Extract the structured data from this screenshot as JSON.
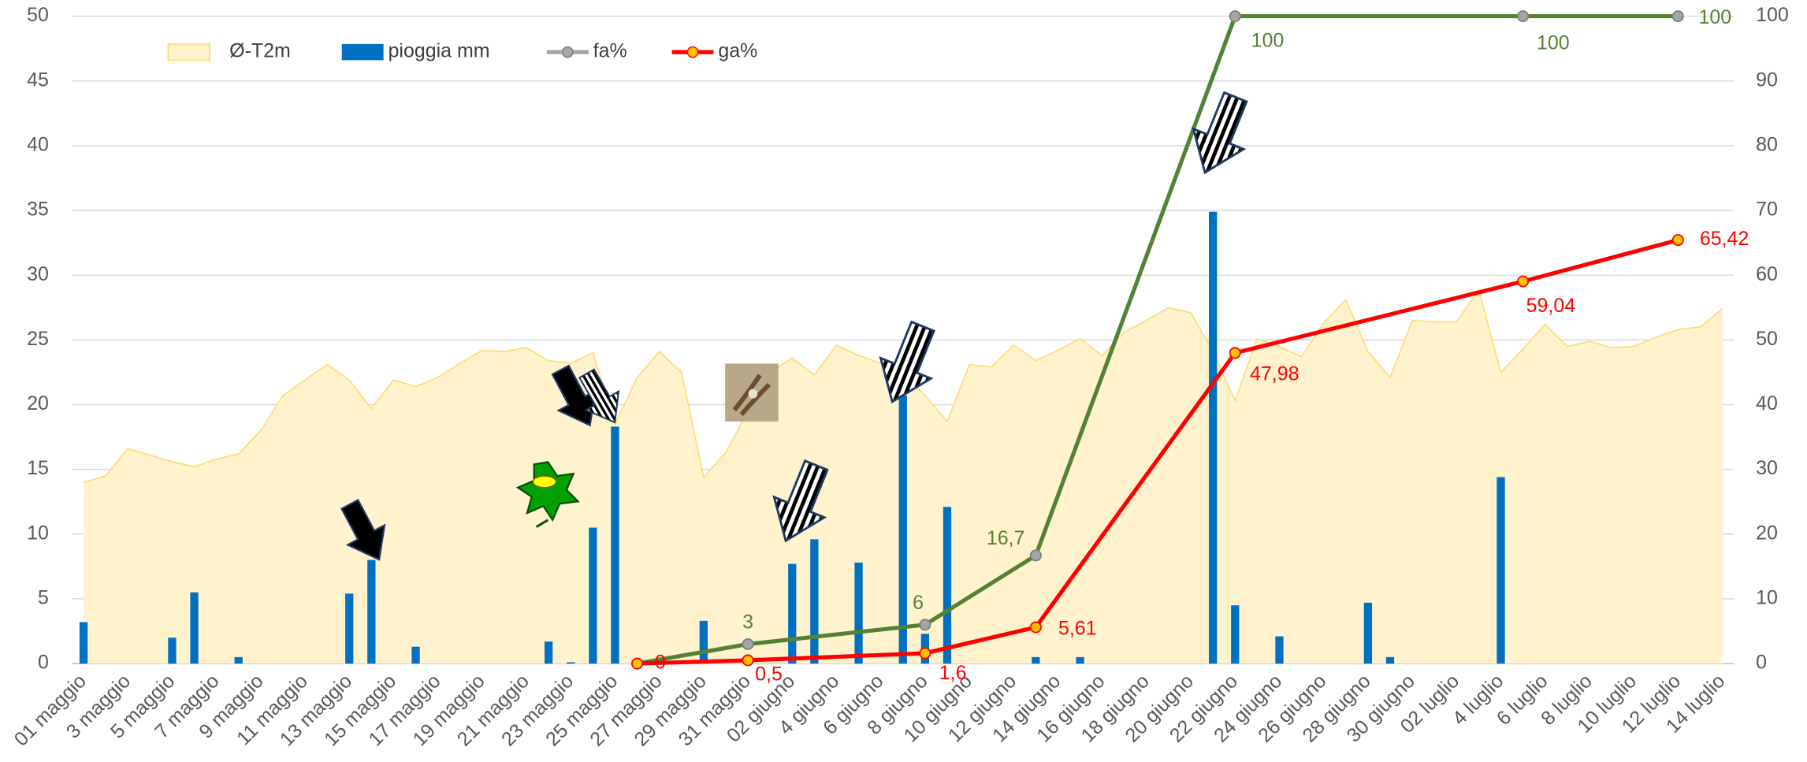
{
  "chart_data": {
    "type": "combo",
    "categories": [
      "01 maggio",
      null,
      "3 maggio",
      null,
      "5 maggio",
      null,
      "7 maggio",
      null,
      "9 maggio",
      null,
      "11 maggio",
      null,
      "13 maggio",
      null,
      "15 maggio",
      null,
      "17 maggio",
      null,
      "19 maggio",
      null,
      "21 maggio",
      null,
      "23 maggio",
      null,
      "25 maggio",
      null,
      "27 maggio",
      null,
      "29 maggio",
      null,
      "31 maggio",
      null,
      "02 giugno",
      null,
      "4 giugno",
      null,
      "6 giugno",
      null,
      "8 giugno",
      null,
      "10 giugno",
      null,
      "12 giugno",
      null,
      "14 giugno",
      null,
      "16 giugno",
      null,
      "18 giugno",
      null,
      "20 giugno",
      null,
      "22 giugno",
      null,
      "24 giugno",
      null,
      "26 giugno",
      null,
      "28 giugno",
      null,
      "30 giugno",
      null,
      "02 luglio",
      null,
      "4 luglio",
      null,
      "6 luglio",
      null,
      "8 luglio",
      null,
      "10 luglio",
      null,
      "12 luglio",
      null,
      "14 luglio"
    ],
    "series": [
      {
        "name": "Ø-T2m",
        "type": "area",
        "color": "#fff2cc",
        "values": [
          14,
          14.5,
          16.6,
          16.1,
          15.6,
          15.2,
          15.8,
          16.2,
          18,
          20.7,
          21.9,
          23.1,
          21.9,
          19.7,
          21.9,
          21.4,
          22.1,
          23.2,
          24.2,
          24.1,
          24.4,
          23.4,
          23.2,
          24,
          18.5,
          22.1,
          24.1,
          22.5,
          14.4,
          16.3,
          19.5,
          22.5,
          23.6,
          22.3,
          24.6,
          23.8,
          23.2,
          22.5,
          20.7,
          18.7,
          23.1,
          22.9,
          24.6,
          23.4,
          24.2,
          25.1,
          23.8,
          25.6,
          26.5,
          27.5,
          27.1,
          24.1,
          20.3,
          25.1,
          24.5,
          23.7,
          26.3,
          28.1,
          24.1,
          22.1,
          26.5,
          26.4,
          26.4,
          28.9,
          22.5,
          24.3,
          26.2,
          24.5,
          24.9,
          24.4,
          24.5,
          25.2,
          25.8,
          26,
          27.4
        ]
      },
      {
        "name": "pioggia mm",
        "type": "bar",
        "color": "#0070c0",
        "values": [
          3.2,
          0,
          0,
          0,
          2,
          5.5,
          0,
          0.5,
          0,
          0,
          0,
          0,
          5.4,
          8,
          0,
          1.3,
          0,
          0,
          0,
          0,
          0,
          1.7,
          0.1,
          10.5,
          18.3,
          0,
          0,
          0,
          3.3,
          0,
          0,
          0,
          7.7,
          9.6,
          0,
          7.8,
          0,
          20.7,
          2.3,
          12.1,
          0,
          0,
          0,
          0.5,
          0,
          0.5,
          0,
          0,
          0,
          0,
          0,
          34.9,
          4.5,
          0,
          2.1,
          0,
          0,
          0,
          4.7,
          0.5,
          0,
          0,
          0,
          0,
          14.4,
          0,
          0,
          0,
          0,
          0,
          0,
          0,
          0,
          0,
          0
        ]
      },
      {
        "name": "fa%",
        "type": "line",
        "axis": "y2",
        "color": "#548235",
        "marker_color": "#a5a5a5",
        "values": [
          null,
          null,
          null,
          null,
          null,
          null,
          null,
          null,
          null,
          null,
          null,
          null,
          null,
          null,
          null,
          null,
          null,
          null,
          null,
          null,
          null,
          null,
          null,
          null,
          null,
          0,
          null,
          null,
          null,
          null,
          3,
          null,
          null,
          null,
          null,
          null,
          null,
          null,
          6,
          null,
          null,
          null,
          null,
          16.7,
          null,
          null,
          null,
          null,
          null,
          null,
          null,
          null,
          100,
          null,
          null,
          null,
          null,
          null,
          null,
          null,
          null,
          null,
          null,
          null,
          null,
          100,
          null,
          null,
          null,
          null,
          null,
          null,
          100,
          null,
          null
        ],
        "value_labels": [
          null,
          null,
          null,
          null,
          null,
          null,
          null,
          null,
          null,
          null,
          null,
          null,
          null,
          null,
          null,
          null,
          null,
          null,
          null,
          null,
          null,
          null,
          null,
          null,
          null,
          null,
          null,
          null,
          null,
          null,
          "3",
          null,
          null,
          null,
          null,
          null,
          null,
          null,
          "6",
          null,
          null,
          null,
          null,
          "16,7",
          null,
          null,
          null,
          null,
          null,
          null,
          null,
          null,
          "100",
          null,
          null,
          null,
          null,
          null,
          null,
          null,
          null,
          null,
          null,
          null,
          null,
          "100",
          null,
          null,
          null,
          null,
          null,
          null,
          "100",
          null,
          null
        ]
      },
      {
        "name": "ga%",
        "type": "line",
        "axis": "y2",
        "color": "#ff0000",
        "marker_color": "#ffc000",
        "values": [
          null,
          null,
          null,
          null,
          null,
          null,
          null,
          null,
          null,
          null,
          null,
          null,
          null,
          null,
          null,
          null,
          null,
          null,
          null,
          null,
          null,
          null,
          null,
          null,
          null,
          0,
          null,
          null,
          null,
          null,
          0.5,
          null,
          null,
          null,
          null,
          null,
          null,
          null,
          1.6,
          null,
          null,
          null,
          null,
          5.61,
          null,
          null,
          null,
          null,
          null,
          null,
          null,
          null,
          47.98,
          null,
          null,
          null,
          null,
          null,
          null,
          null,
          null,
          null,
          null,
          null,
          null,
          59.04,
          null,
          null,
          null,
          null,
          null,
          null,
          65.42,
          null,
          null
        ],
        "value_labels": [
          null,
          null,
          null,
          null,
          null,
          null,
          null,
          null,
          null,
          null,
          null,
          null,
          null,
          null,
          null,
          null,
          null,
          null,
          null,
          null,
          null,
          null,
          null,
          null,
          null,
          "0",
          null,
          null,
          null,
          null,
          "0,5",
          null,
          null,
          null,
          null,
          null,
          null,
          null,
          "1,6",
          null,
          null,
          null,
          null,
          "5,61",
          null,
          null,
          null,
          null,
          null,
          null,
          null,
          null,
          "47,98",
          null,
          null,
          null,
          null,
          null,
          null,
          null,
          null,
          null,
          null,
          null,
          null,
          "59,04",
          null,
          null,
          null,
          null,
          null,
          null,
          "65,42",
          null,
          null
        ]
      }
    ],
    "ylim": [
      0,
      50
    ],
    "yticks": [
      0,
      5,
      10,
      15,
      20,
      25,
      30,
      35,
      40,
      45,
      50
    ],
    "y2lim": [
      0,
      100
    ],
    "y2ticks": [
      0,
      10,
      20,
      30,
      40,
      50,
      60,
      70,
      80,
      90,
      100
    ],
    "grid": true,
    "legend": "top-left"
  }
}
